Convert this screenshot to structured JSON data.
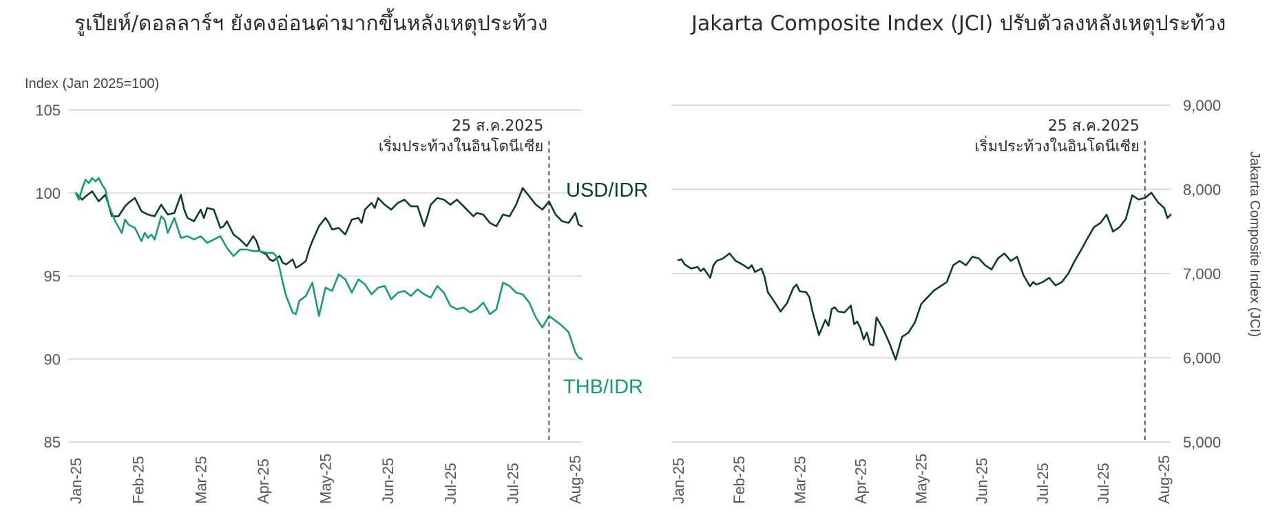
{
  "chart_data": [
    {
      "type": "line",
      "title": "รูเปียห์/ดอลลาร์ฯ ยังคงอ่อนค่ามากขึ้นหลังเหตุประท้วง",
      "ylabel": "Index (Jan 2025=100)",
      "ylim": [
        85,
        105
      ],
      "yticks": [
        "105",
        "100",
        "95",
        "90",
        "85"
      ],
      "ytick_values": [
        105,
        100,
        95,
        90,
        85
      ],
      "xlim": [
        0,
        7.7
      ],
      "xticks": [
        "Jan-25",
        "Feb-25",
        "Mar-25",
        "Apr-25",
        "May-25",
        "Jun-25",
        "Jul-25",
        "Jul-25",
        "Aug-25"
      ],
      "grid": true,
      "annotation": {
        "x": 7.2,
        "line1": "25 ส.ค.2025",
        "line2": "เริ่มประท้วงในอินโดนีเซีย"
      },
      "series": [
        {
          "name": "USD/IDR",
          "color": "#0b3d27",
          "x": [
            0,
            0.1,
            0.15,
            0.25,
            0.3,
            0.35,
            0.45,
            0.5,
            0.55,
            0.65,
            0.75,
            0.8,
            0.9,
            1.0,
            1.1,
            1.2,
            1.3,
            1.35,
            1.4,
            1.5,
            1.6,
            1.65,
            1.7,
            1.8,
            1.9,
            1.95,
            2.0,
            2.1,
            2.2,
            2.25,
            2.3,
            2.4,
            2.5,
            2.55,
            2.6,
            2.7,
            2.75,
            2.8,
            2.9,
            2.95,
            3.0,
            3.1,
            3.15,
            3.2,
            3.3,
            3.35,
            3.4,
            3.5,
            3.55,
            3.6,
            3.7,
            3.8,
            3.85,
            3.9,
            4.0,
            4.05,
            4.1,
            4.2,
            4.3,
            4.35,
            4.4,
            4.5,
            4.55,
            4.6,
            4.7,
            4.8,
            4.9,
            5.0,
            5.1,
            5.2,
            5.3,
            5.35,
            5.4,
            5.5,
            5.6,
            5.7,
            5.8,
            5.9,
            6.0,
            6.05,
            6.1,
            6.2,
            6.3,
            6.4,
            6.5,
            6.6,
            6.7,
            6.8,
            6.9,
            7.0,
            7.1,
            7.2,
            7.3,
            7.4,
            7.5,
            7.6,
            7.65,
            7.7
          ],
          "values": [
            100.0,
            99.6,
            99.8,
            100.1,
            99.8,
            99.5,
            99.9,
            99.3,
            98.6,
            98.6,
            99.2,
            99.4,
            99.7,
            98.9,
            98.7,
            98.6,
            99.3,
            99.0,
            98.7,
            98.8,
            99.9,
            99.0,
            98.5,
            98.3,
            99.0,
            98.5,
            99.1,
            99.0,
            97.9,
            98.0,
            98.3,
            97.5,
            97.2,
            97.0,
            96.8,
            97.4,
            97.1,
            96.5,
            96.3,
            96.0,
            95.9,
            96.2,
            95.8,
            95.7,
            96.0,
            95.5,
            95.6,
            95.9,
            96.6,
            97.1,
            98.0,
            98.5,
            98.2,
            97.8,
            97.9,
            97.7,
            97.5,
            98.4,
            98.5,
            98.2,
            99.0,
            99.4,
            99.1,
            99.7,
            99.3,
            99.0,
            99.4,
            99.6,
            99.2,
            99.2,
            98.0,
            98.6,
            99.3,
            99.7,
            99.6,
            99.3,
            99.6,
            99.2,
            98.8,
            98.6,
            98.8,
            98.7,
            98.2,
            98.0,
            98.7,
            98.6,
            99.3,
            100.3,
            99.8,
            99.3,
            99.0,
            99.5,
            98.7,
            98.3,
            98.2,
            98.8,
            98.1,
            98.0
          ]
        },
        {
          "name": "THB/IDR",
          "color": "#199b71",
          "x": [
            0,
            0.05,
            0.1,
            0.15,
            0.2,
            0.25,
            0.3,
            0.35,
            0.4,
            0.45,
            0.5,
            0.55,
            0.6,
            0.7,
            0.75,
            0.8,
            0.9,
            1.0,
            1.05,
            1.1,
            1.15,
            1.2,
            1.25,
            1.3,
            1.35,
            1.4,
            1.5,
            1.6,
            1.7,
            1.8,
            1.9,
            2.0,
            2.1,
            2.2,
            2.3,
            2.4,
            2.45,
            2.5,
            2.6,
            2.7,
            2.8,
            2.9,
            3.0,
            3.05,
            3.1,
            3.15,
            3.2,
            3.3,
            3.35,
            3.4,
            3.5,
            3.6,
            3.7,
            3.8,
            3.9,
            4.0,
            4.1,
            4.2,
            4.3,
            4.4,
            4.5,
            4.6,
            4.7,
            4.8,
            4.9,
            5.0,
            5.1,
            5.2,
            5.3,
            5.4,
            5.5,
            5.6,
            5.7,
            5.8,
            5.9,
            6.0,
            6.1,
            6.2,
            6.3,
            6.4,
            6.5,
            6.6,
            6.7,
            6.8,
            6.9,
            7.0,
            7.1,
            7.2,
            7.3,
            7.4,
            7.5,
            7.6,
            7.65,
            7.7
          ],
          "values": [
            100.0,
            99.6,
            100.3,
            100.8,
            100.6,
            100.9,
            100.7,
            100.9,
            100.5,
            100.2,
            99.3,
            98.8,
            98.3,
            97.6,
            98.4,
            98.1,
            97.9,
            97.1,
            97.6,
            97.3,
            97.5,
            97.2,
            97.9,
            98.6,
            98.4,
            97.6,
            98.5,
            97.3,
            97.4,
            97.2,
            97.4,
            97.0,
            97.2,
            97.4,
            96.7,
            96.2,
            96.4,
            96.6,
            96.6,
            96.5,
            96.5,
            96.4,
            96.4,
            96.2,
            95.5,
            94.6,
            93.8,
            92.8,
            92.7,
            93.5,
            93.8,
            94.6,
            92.6,
            94.3,
            94.1,
            95.1,
            94.8,
            94.0,
            94.8,
            94.5,
            93.9,
            94.3,
            94.4,
            93.6,
            94.0,
            94.1,
            93.8,
            94.2,
            93.9,
            93.7,
            94.4,
            94.0,
            93.2,
            93.0,
            93.1,
            92.8,
            93.0,
            93.4,
            92.7,
            93.0,
            94.6,
            94.4,
            94.0,
            93.9,
            93.4,
            92.5,
            91.9,
            92.6,
            92.3,
            92.0,
            91.6,
            90.4,
            90.1,
            90.0
          ]
        }
      ]
    },
    {
      "type": "line",
      "title": "Jakarta Composite Index (JCI) ปรับตัวลงหลังเหตุประท้วง",
      "ylabel": "Jakarta Composite Index (JCI)",
      "ylim": [
        5000,
        9000
      ],
      "yticks": [
        "9,000",
        "8,000",
        "7,000",
        "6,000",
        "5,000"
      ],
      "ytick_values": [
        9000,
        8000,
        7000,
        6000,
        5000
      ],
      "xlim": [
        0,
        7.7
      ],
      "xticks": [
        "Jan-25",
        "Feb-25",
        "Mar-25",
        "Apr-25",
        "May-25",
        "Jun-25",
        "Jul-25",
        "Jul-25",
        "Aug-25"
      ],
      "grid": true,
      "annotation": {
        "x": 7.3,
        "line1": "25 ส.ค.2025",
        "line2": "เริ่มประท้วงในอินโดนีเซีย"
      },
      "series": [
        {
          "name": "",
          "color": "#0b3d27",
          "x": [
            0,
            0.05,
            0.1,
            0.2,
            0.3,
            0.35,
            0.4,
            0.5,
            0.55,
            0.6,
            0.7,
            0.8,
            0.9,
            1.0,
            1.1,
            1.15,
            1.2,
            1.3,
            1.35,
            1.4,
            1.5,
            1.6,
            1.7,
            1.8,
            1.85,
            1.9,
            2.0,
            2.05,
            2.1,
            2.2,
            2.3,
            2.35,
            2.4,
            2.45,
            2.5,
            2.6,
            2.7,
            2.75,
            2.8,
            2.85,
            2.9,
            2.95,
            3.0,
            3.05,
            3.1,
            3.2,
            3.3,
            3.4,
            3.5,
            3.6,
            3.7,
            3.8,
            3.9,
            4.0,
            4.1,
            4.2,
            4.3,
            4.4,
            4.5,
            4.6,
            4.7,
            4.8,
            4.9,
            5.0,
            5.1,
            5.2,
            5.3,
            5.4,
            5.5,
            5.55,
            5.6,
            5.7,
            5.8,
            5.9,
            6.0,
            6.1,
            6.2,
            6.3,
            6.4,
            6.5,
            6.6,
            6.7,
            6.8,
            6.9,
            7.0,
            7.1,
            7.2,
            7.3,
            7.4,
            7.5,
            7.6,
            7.65,
            7.7
          ],
          "values": [
            7160,
            7170,
            7110,
            7060,
            7080,
            7030,
            7060,
            6950,
            7100,
            7150,
            7180,
            7240,
            7150,
            7110,
            7060,
            7100,
            7020,
            7060,
            6960,
            6780,
            6670,
            6550,
            6650,
            6830,
            6870,
            6790,
            6780,
            6720,
            6550,
            6270,
            6450,
            6380,
            6580,
            6600,
            6550,
            6540,
            6620,
            6400,
            6430,
            6350,
            6220,
            6300,
            6160,
            6150,
            6480,
            6350,
            6180,
            5980,
            6250,
            6300,
            6420,
            6640,
            6720,
            6800,
            6850,
            6900,
            7100,
            7150,
            7100,
            7200,
            7180,
            7100,
            7050,
            7180,
            7240,
            7150,
            7200,
            6980,
            6850,
            6900,
            6870,
            6900,
            6950,
            6860,
            6900,
            7000,
            7150,
            7280,
            7420,
            7550,
            7600,
            7700,
            7500,
            7550,
            7650,
            7930,
            7880,
            7900,
            7960,
            7850,
            7780,
            7660,
            7700
          ]
        }
      ]
    }
  ],
  "label_colors": {
    "usd": "#0b3d27",
    "thb": "#199b71"
  },
  "annotation_line_color": "#333333"
}
